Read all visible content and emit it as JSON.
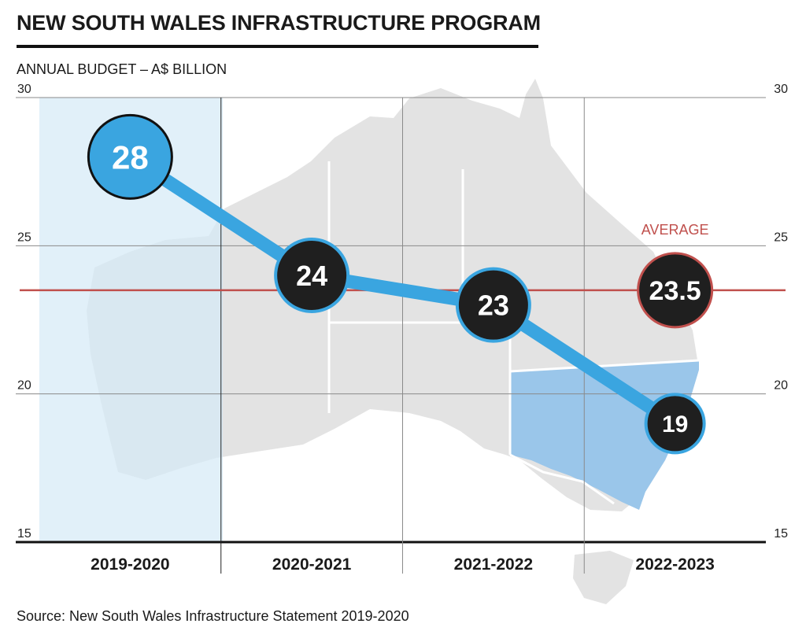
{
  "title": "NEW SOUTH WALES INFRASTRUCTURE PROGRAM",
  "subtitle": "ANNUAL BUDGET – A$ BILLION",
  "source": "Source: New South Wales Infrastructure Statement 2019-2020",
  "colors": {
    "series": "#3aa5e0",
    "marker_fill": "#1f1f1f",
    "highlight_marker": "#3aa5e0",
    "average_line": "#c0504d",
    "highlight_band": "#d6eaf6",
    "map": "#e3e3e3",
    "nsw_region": "#9ac6ea"
  },
  "chart_data": {
    "type": "line",
    "title": "NEW SOUTH WALES INFRASTRUCTURE PROGRAM",
    "ylabel": "ANNUAL BUDGET – A$ BILLION",
    "categories": [
      "2019-2020",
      "2020-2021",
      "2021-2022",
      "2022-2023"
    ],
    "values": [
      28,
      24,
      23,
      19
    ],
    "value_labels": [
      "28",
      "24",
      "23",
      "19"
    ],
    "highlighted_category": "2019-2020",
    "ylim": [
      15,
      30
    ],
    "yticks": [
      15,
      20,
      25,
      30
    ],
    "ytick_labels": [
      "15",
      "20",
      "25",
      "30"
    ],
    "grid": true,
    "average": {
      "label": "AVERAGE",
      "value": 23.5,
      "value_label": "23.5"
    },
    "background": "map of Australia with New South Wales highlighted"
  }
}
